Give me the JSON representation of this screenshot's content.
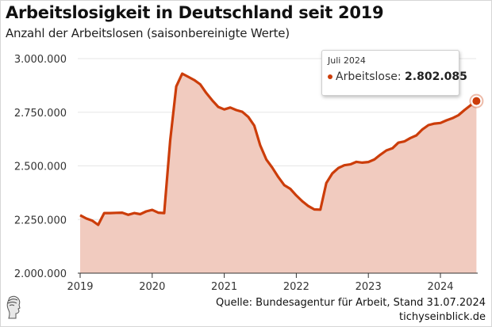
{
  "header": {
    "title": "Arbeitslosigkeit in Deutschland seit 2019",
    "subtitle": "Anzahl der Arbeitslosen (saisonbereinigte Werte)"
  },
  "tooltip": {
    "date": "Juli 2024",
    "series_label": "Arbeitslose:",
    "value": "2.802.085"
  },
  "footer": {
    "source": "Quelle: Bundesagentur für Arbeit, Stand 31.07.2024",
    "site": "tichyseinblick.de",
    "logo_icon": "classical-head-logo-icon"
  },
  "colors": {
    "line": "#cc3d0a",
    "fill": "#f1cbbf",
    "grid": "#e6e6e6"
  },
  "chart_data": {
    "type": "area",
    "title": "Arbeitslosigkeit in Deutschland seit 2019",
    "subtitle": "Anzahl der Arbeitslosen (saisonbereinigte Werte)",
    "xlabel": "",
    "ylabel": "",
    "ylim": [
      2000000,
      3000000
    ],
    "yticks": [
      2000000,
      2250000,
      2500000,
      2750000,
      3000000
    ],
    "ytick_labels": [
      "2.000.000",
      "2.250.000",
      "2.500.000",
      "2.750.000",
      "3.000.000"
    ],
    "xticks": [
      "2019",
      "2020",
      "2021",
      "2022",
      "2023",
      "2024"
    ],
    "xstart": "2019-01",
    "grid": true,
    "legend": "none",
    "series": [
      {
        "name": "Arbeitslose",
        "frequency": "monthly",
        "values": [
          2270000,
          2255000,
          2245000,
          2225000,
          2280000,
          2280000,
          2281000,
          2282000,
          2272000,
          2280000,
          2275000,
          2288000,
          2295000,
          2282000,
          2280000,
          2620000,
          2870000,
          2930000,
          2915000,
          2900000,
          2880000,
          2840000,
          2805000,
          2775000,
          2763000,
          2772000,
          2760000,
          2752000,
          2728000,
          2688000,
          2595000,
          2530000,
          2492000,
          2448000,
          2410000,
          2393000,
          2362000,
          2335000,
          2313000,
          2297000,
          2296000,
          2420000,
          2465000,
          2490000,
          2503000,
          2507000,
          2519000,
          2515000,
          2518000,
          2530000,
          2552000,
          2572000,
          2582000,
          2608000,
          2614000,
          2630000,
          2642000,
          2670000,
          2690000,
          2697000,
          2700000,
          2712000,
          2722000,
          2736000,
          2760000,
          2782000,
          2802085
        ]
      }
    ],
    "annotations": [
      {
        "label": "Juli 2024",
        "text": "Arbeitslose: 2.802.085"
      }
    ]
  }
}
